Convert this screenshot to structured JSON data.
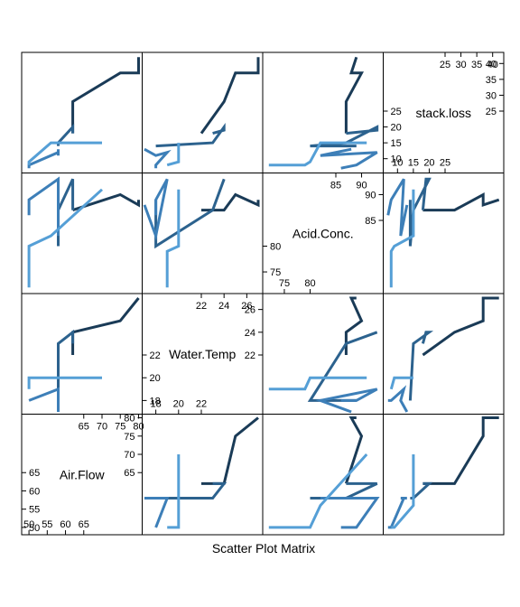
{
  "chart_data": {
    "type": "scatter-matrix",
    "panel_style": "lines",
    "xlabel": "Scatter Plot Matrix",
    "variables": [
      {
        "name": "Air.Flow",
        "range": [
          48,
          81
        ],
        "ticks_low": [
          50,
          55,
          60,
          65
        ],
        "ticks_high": [
          65,
          70,
          75,
          80
        ]
      },
      {
        "name": "Water.Temp",
        "range": [
          16.8,
          27.4
        ],
        "ticks_low": [
          18,
          20,
          22
        ],
        "ticks_high": [
          22,
          24,
          26
        ]
      },
      {
        "name": "Acid.Conc.",
        "range": [
          70.8,
          94.2
        ],
        "ticks_low": [
          75,
          80
        ],
        "ticks_high": [
          85,
          90
        ]
      },
      {
        "name": "stack.loss",
        "range": [
          5.5,
          43.5
        ],
        "ticks_low": [
          10,
          15,
          20,
          25
        ],
        "ticks_high": [
          25,
          30,
          35,
          40
        ]
      }
    ],
    "series": [
      {
        "color": "#1a3b57",
        "rows": [
          [
            80,
            27,
            89,
            42
          ],
          [
            80,
            27,
            88,
            37
          ],
          [
            75,
            25,
            90,
            37
          ],
          [
            62,
            24,
            87,
            28
          ],
          [
            62,
            22,
            87,
            18
          ]
        ]
      },
      {
        "color": "#2c628e",
        "rows": [
          [
            62,
            23,
            87,
            18
          ],
          [
            62,
            24,
            93,
            19
          ],
          [
            62,
            24,
            93,
            20
          ],
          [
            58,
            23,
            87,
            15
          ],
          [
            58,
            18,
            80,
            14
          ],
          [
            58,
            18,
            89,
            14
          ]
        ]
      },
      {
        "color": "#3d7fb8",
        "rows": [
          [
            58,
            17,
            88,
            13
          ],
          [
            58,
            18,
            82,
            11
          ],
          [
            58,
            19,
            93,
            12
          ],
          [
            50,
            18,
            89,
            8
          ],
          [
            50,
            18,
            86,
            7
          ]
        ]
      },
      {
        "color": "#559fd6",
        "rows": [
          [
            50,
            19,
            72,
            8
          ],
          [
            50,
            19,
            79,
            8
          ],
          [
            50,
            20,
            80,
            9
          ],
          [
            56,
            20,
            82,
            15
          ],
          [
            70,
            20,
            91,
            15
          ]
        ]
      }
    ]
  }
}
